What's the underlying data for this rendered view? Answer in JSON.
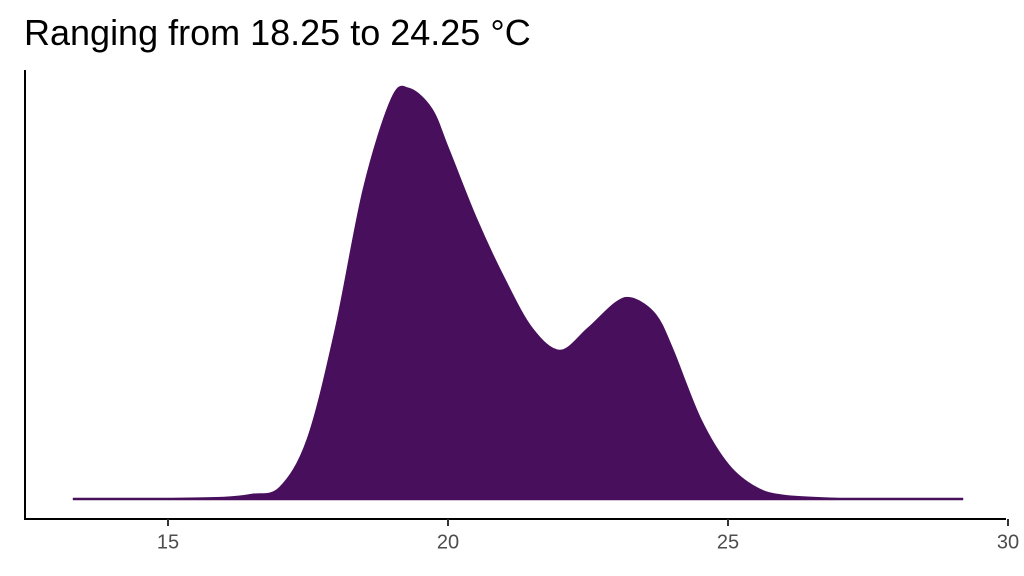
{
  "chart_data": {
    "type": "density",
    "title": "Ranging from 18.25 to 24.25 °C",
    "x": [
      13.3,
      14,
      15,
      16,
      16.5,
      17,
      17.5,
      18,
      18.5,
      19,
      19.3,
      19.7,
      20,
      20.5,
      21,
      21.5,
      22,
      22.5,
      23,
      23.3,
      23.7,
      24,
      24.5,
      25,
      25.5,
      26,
      27,
      28,
      29.2
    ],
    "values": [
      0,
      0,
      0,
      0.0005,
      0.002,
      0.0055,
      0.03,
      0.085,
      0.155,
      0.2,
      0.205,
      0.195,
      0.175,
      0.14,
      0.11,
      0.085,
      0.074,
      0.085,
      0.098,
      0.1,
      0.092,
      0.075,
      0.04,
      0.017,
      0.0055,
      0.0015,
      0,
      0,
      0
    ],
    "color": "#480f5c",
    "xlim": [
      12.5,
      30
    ],
    "xticks": [
      15,
      20,
      25,
      30
    ],
    "ylim": [
      -0.01,
      0.2145
    ]
  }
}
